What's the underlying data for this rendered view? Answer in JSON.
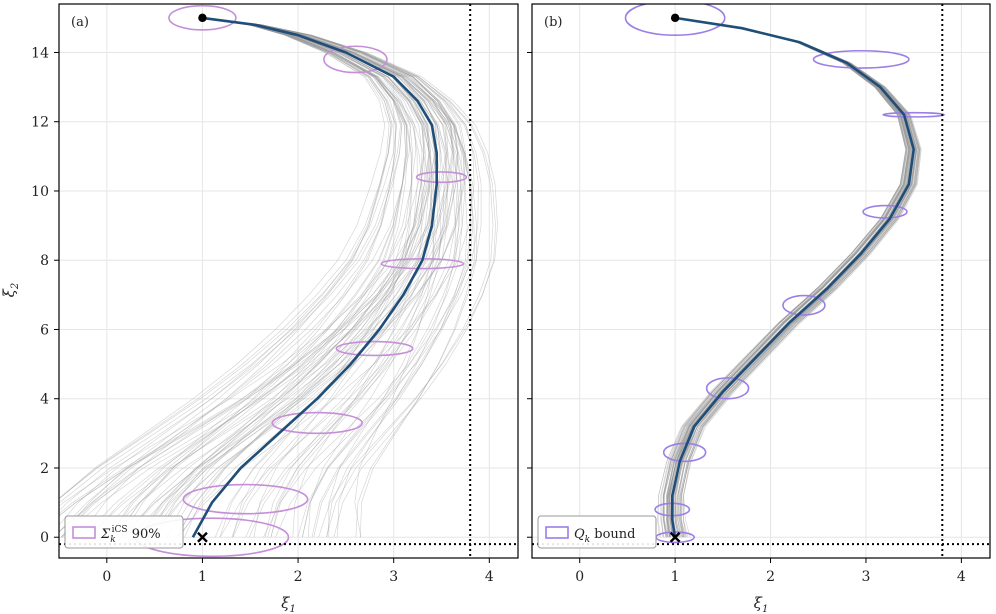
{
  "figure": {
    "ylabel": "ξ",
    "ylabel_sub": "2"
  },
  "chart_data": [
    {
      "type": "line",
      "panel_label": "(a)",
      "xlabel": "ξ",
      "xlabel_sub": "1",
      "ylabel": "ξ",
      "ylabel_sub": "2",
      "xlim": [
        -0.5,
        4.3
      ],
      "ylim": [
        -0.6,
        15.4
      ],
      "xticks": [
        0,
        1,
        2,
        3,
        4
      ],
      "yticks": [
        0,
        2,
        4,
        6,
        8,
        10,
        12,
        14
      ],
      "grid": true,
      "constraint_lines": {
        "x_max": 3.8,
        "y_min": -0.2,
        "style": "dotted"
      },
      "legend": {
        "position": "bottom-left",
        "label_main": "Σ",
        "label_sub": "k",
        "label_sup": "iCS",
        "label_suffix": " 90%",
        "color": "#c58fd8"
      },
      "start_marker": {
        "x": 1.0,
        "y": 15.0,
        "shape": "dot"
      },
      "target_marker": {
        "x": 1.0,
        "y": 0.0,
        "shape": "x"
      },
      "mean_trajectory": {
        "color": "#1f4e79",
        "x": [
          1.0,
          1.55,
          2.0,
          2.5,
          3.0,
          3.25,
          3.4,
          3.45,
          3.45,
          3.4,
          3.3,
          3.1,
          2.85,
          2.55,
          2.2,
          1.8,
          1.4,
          1.1,
          0.9
        ],
        "y": [
          15.0,
          14.8,
          14.5,
          14.0,
          13.3,
          12.6,
          11.9,
          11.1,
          10.2,
          9.0,
          8.0,
          7.0,
          6.0,
          5.0,
          4.0,
          3.0,
          2.0,
          1.0,
          0.0
        ]
      },
      "sample_trajectories": {
        "count": 80,
        "color": "#999999",
        "spread_end_x": 1.8,
        "spread_mid_x": 0.45
      },
      "ellipses": [
        {
          "cx": 1.0,
          "cy": 15.0,
          "rx": 0.35,
          "ry": 0.35
        },
        {
          "cx": 2.6,
          "cy": 13.8,
          "rx": 0.33,
          "ry": 0.38
        },
        {
          "cx": 3.5,
          "cy": 10.4,
          "rx": 0.26,
          "ry": 0.15
        },
        {
          "cx": 3.3,
          "cy": 7.9,
          "rx": 0.43,
          "ry": 0.14
        },
        {
          "cx": 2.8,
          "cy": 5.45,
          "rx": 0.4,
          "ry": 0.2
        },
        {
          "cx": 2.2,
          "cy": 3.3,
          "rx": 0.47,
          "ry": 0.3
        },
        {
          "cx": 1.45,
          "cy": 1.1,
          "rx": 0.65,
          "ry": 0.42
        },
        {
          "cx": 1.1,
          "cy": 0.0,
          "rx": 0.8,
          "ry": 0.55
        }
      ]
    },
    {
      "type": "line",
      "panel_label": "(b)",
      "xlabel": "ξ",
      "xlabel_sub": "1",
      "xlim": [
        -0.5,
        4.3
      ],
      "ylim": [
        -0.6,
        15.4
      ],
      "xticks": [
        0,
        1,
        2,
        3,
        4
      ],
      "yticks": [
        0,
        2,
        4,
        6,
        8,
        10,
        12,
        14
      ],
      "grid": true,
      "constraint_lines": {
        "x_max": 3.8,
        "y_min": -0.2,
        "style": "dotted"
      },
      "legend": {
        "position": "bottom-left",
        "label_main": "Q",
        "label_sub": "k",
        "label_sup": "",
        "label_suffix": " bound",
        "color": "#9b7fe6"
      },
      "start_marker": {
        "x": 1.0,
        "y": 15.0,
        "shape": "dot"
      },
      "target_marker": {
        "x": 1.0,
        "y": 0.0,
        "shape": "x"
      },
      "mean_trajectory": {
        "color": "#1f4e79",
        "x": [
          1.0,
          1.7,
          2.3,
          2.8,
          3.15,
          3.4,
          3.5,
          3.45,
          3.25,
          2.95,
          2.6,
          2.2,
          1.85,
          1.5,
          1.2,
          1.05,
          0.97,
          0.97,
          1.0
        ],
        "y": [
          15.0,
          14.7,
          14.3,
          13.7,
          13.0,
          12.2,
          11.2,
          10.2,
          9.2,
          8.2,
          7.2,
          6.2,
          5.2,
          4.2,
          3.2,
          2.2,
          1.2,
          0.5,
          0.0
        ]
      },
      "sample_trajectories": {
        "count": 70,
        "color": "#999999",
        "spread_end_x": 0.08,
        "spread_mid_x": 0.07
      },
      "ellipses": [
        {
          "cx": 1.0,
          "cy": 15.0,
          "rx": 0.52,
          "ry": 0.5
        },
        {
          "cx": 2.95,
          "cy": 13.8,
          "rx": 0.5,
          "ry": 0.25
        },
        {
          "cx": 3.5,
          "cy": 12.2,
          "rx": 0.32,
          "ry": 0.06
        },
        {
          "cx": 3.2,
          "cy": 9.4,
          "rx": 0.23,
          "ry": 0.18
        },
        {
          "cx": 2.35,
          "cy": 6.7,
          "rx": 0.22,
          "ry": 0.28
        },
        {
          "cx": 1.55,
          "cy": 4.3,
          "rx": 0.22,
          "ry": 0.3
        },
        {
          "cx": 1.1,
          "cy": 2.45,
          "rx": 0.22,
          "ry": 0.26
        },
        {
          "cx": 0.97,
          "cy": 0.8,
          "rx": 0.18,
          "ry": 0.18
        },
        {
          "cx": 1.0,
          "cy": 0.0,
          "rx": 0.2,
          "ry": 0.15
        }
      ]
    }
  ]
}
